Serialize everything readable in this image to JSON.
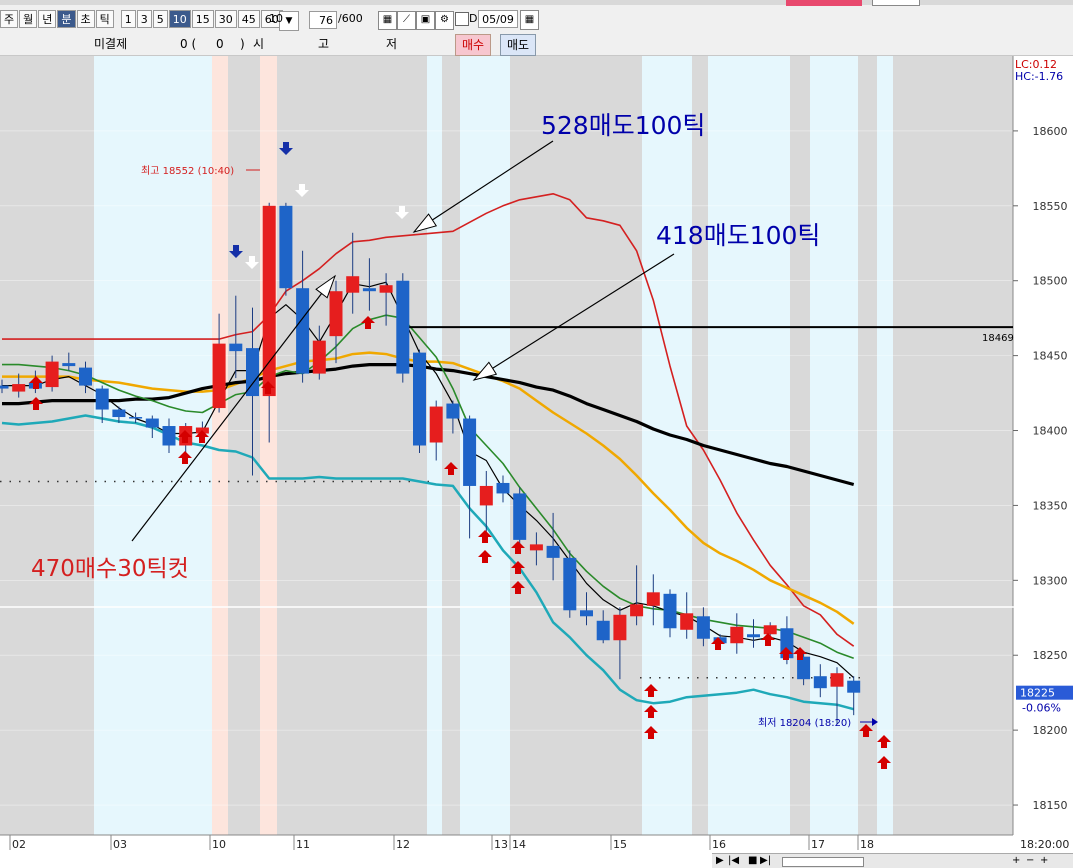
{
  "toolbar": {
    "buttons": [
      "주",
      "월",
      "년",
      "분",
      "초",
      "틱",
      "1",
      "3",
      "5",
      "10",
      "15",
      "30",
      "45",
      "60"
    ],
    "selected": [
      "분",
      "10"
    ],
    "period_value": "10",
    "count_value": "76",
    "count_max": "/600",
    "d_label": "D",
    "date_value": "05/09"
  },
  "order_row": {
    "unfilled_label": "미결제",
    "unfilled_value": "0 (",
    "unfilled_paren": "0",
    "unfilled_close": ")",
    "si": "시",
    "go": "고",
    "jeo": "저",
    "buy_button": "매수",
    "sell_button": "매도"
  },
  "chart_data": {
    "type": "candlestick",
    "y_axis": {
      "range": [
        18130,
        18650
      ],
      "ticks": [
        "18600",
        "18550",
        "18500",
        "18450",
        "18400",
        "18350",
        "18300",
        "18250",
        "18200",
        "18150"
      ],
      "tick_values": [
        18600,
        18550,
        18500,
        18450,
        18400,
        18350,
        18300,
        18250,
        18200,
        18150
      ]
    },
    "x_axis": {
      "labels": [
        "02",
        "03",
        "10",
        "11",
        "12",
        "13",
        "14",
        "15",
        "16",
        "17",
        "18"
      ],
      "last_time": "18:20:00"
    },
    "top_right": {
      "lc": "LC:0.12",
      "hc": "HC:-1.76"
    },
    "current": {
      "price": "18225",
      "change": "-0.06%",
      "value": 18225
    },
    "level_line": {
      "label": "18469",
      "value": 18469
    },
    "dotted_lines": [
      18366,
      18235
    ],
    "candles": [
      {
        "o": 18430,
        "h": 18434,
        "l": 18425,
        "c": 18428,
        "up": false
      },
      {
        "o": 18426,
        "h": 18438,
        "l": 18422,
        "c": 18431,
        "up": true
      },
      {
        "o": 18432,
        "h": 18440,
        "l": 18425,
        "c": 18428,
        "up": false
      },
      {
        "o": 18429,
        "h": 18450,
        "l": 18426,
        "c": 18446,
        "up": true
      },
      {
        "o": 18445,
        "h": 18452,
        "l": 18440,
        "c": 18443,
        "up": false
      },
      {
        "o": 18442,
        "h": 18446,
        "l": 18425,
        "c": 18430,
        "up": false
      },
      {
        "o": 18428,
        "h": 18430,
        "l": 18405,
        "c": 18414,
        "up": false
      },
      {
        "o": 18414,
        "h": 18416,
        "l": 18405,
        "c": 18409,
        "up": false
      },
      {
        "o": 18409,
        "h": 18412,
        "l": 18405,
        "c": 18408,
        "up": false
      },
      {
        "o": 18408,
        "h": 18410,
        "l": 18395,
        "c": 18402,
        "up": false
      },
      {
        "o": 18403,
        "h": 18408,
        "l": 18385,
        "c": 18390,
        "up": false
      },
      {
        "o": 18390,
        "h": 18405,
        "l": 18383,
        "c": 18403,
        "up": true
      },
      {
        "o": 18398,
        "h": 18406,
        "l": 18394,
        "c": 18402,
        "up": true
      },
      {
        "o": 18415,
        "h": 18478,
        "l": 18412,
        "c": 18458,
        "up": true
      },
      {
        "o": 18458,
        "h": 18490,
        "l": 18435,
        "c": 18453,
        "up": false
      },
      {
        "o": 18455,
        "h": 18482,
        "l": 18370,
        "c": 18423,
        "up": false
      },
      {
        "o": 18423,
        "h": 18552,
        "l": 18392,
        "c": 18550,
        "up": true
      },
      {
        "o": 18550,
        "h": 18552,
        "l": 18490,
        "c": 18495,
        "up": false
      },
      {
        "o": 18495,
        "h": 18520,
        "l": 18432,
        "c": 18438,
        "up": false
      },
      {
        "o": 18438,
        "h": 18470,
        "l": 18434,
        "c": 18460,
        "up": true
      },
      {
        "o": 18463,
        "h": 18500,
        "l": 18445,
        "c": 18493,
        "up": true
      },
      {
        "o": 18492,
        "h": 18532,
        "l": 18478,
        "c": 18503,
        "up": true
      },
      {
        "o": 18493,
        "h": 18515,
        "l": 18480,
        "c": 18495,
        "up": false
      },
      {
        "o": 18492,
        "h": 18505,
        "l": 18470,
        "c": 18497,
        "up": true
      },
      {
        "o": 18500,
        "h": 18505,
        "l": 18432,
        "c": 18438,
        "up": false
      },
      {
        "o": 18452,
        "h": 18454,
        "l": 18385,
        "c": 18390,
        "up": false
      },
      {
        "o": 18392,
        "h": 18420,
        "l": 18380,
        "c": 18416,
        "up": true
      },
      {
        "o": 18418,
        "h": 18420,
        "l": 18398,
        "c": 18408,
        "up": false
      },
      {
        "o": 18408,
        "h": 18410,
        "l": 18328,
        "c": 18363,
        "up": false
      },
      {
        "o": 18350,
        "h": 18373,
        "l": 18326,
        "c": 18363,
        "up": true
      },
      {
        "o": 18365,
        "h": 18370,
        "l": 18352,
        "c": 18358,
        "up": false
      },
      {
        "o": 18358,
        "h": 18362,
        "l": 18322,
        "c": 18327,
        "up": false
      },
      {
        "o": 18320,
        "h": 18332,
        "l": 18310,
        "c": 18324,
        "up": true
      },
      {
        "o": 18323,
        "h": 18345,
        "l": 18300,
        "c": 18315,
        "up": false
      },
      {
        "o": 18315,
        "h": 18320,
        "l": 18275,
        "c": 18280,
        "up": false
      },
      {
        "o": 18280,
        "h": 18292,
        "l": 18270,
        "c": 18276,
        "up": false
      },
      {
        "o": 18273,
        "h": 18280,
        "l": 18258,
        "c": 18260,
        "up": false
      },
      {
        "o": 18260,
        "h": 18282,
        "l": 18234,
        "c": 18277,
        "up": true
      },
      {
        "o": 18276,
        "h": 18310,
        "l": 18270,
        "c": 18284,
        "up": true
      },
      {
        "o": 18283,
        "h": 18304,
        "l": 18270,
        "c": 18292,
        "up": true
      },
      {
        "o": 18291,
        "h": 18294,
        "l": 18262,
        "c": 18268,
        "up": false
      },
      {
        "o": 18267,
        "h": 18292,
        "l": 18261,
        "c": 18278,
        "up": true
      },
      {
        "o": 18276,
        "h": 18282,
        "l": 18256,
        "c": 18261,
        "up": false
      },
      {
        "o": 18262,
        "h": 18264,
        "l": 18254,
        "c": 18258,
        "up": false
      },
      {
        "o": 18258,
        "h": 18278,
        "l": 18251,
        "c": 18269,
        "up": true
      },
      {
        "o": 18262,
        "h": 18274,
        "l": 18255,
        "c": 18264,
        "up": false
      },
      {
        "o": 18264,
        "h": 18272,
        "l": 18259,
        "c": 18270,
        "up": true
      },
      {
        "o": 18268,
        "h": 18276,
        "l": 18244,
        "c": 18248,
        "up": false
      },
      {
        "o": 18249,
        "h": 18252,
        "l": 18230,
        "c": 18234,
        "up": false
      },
      {
        "o": 18236,
        "h": 18244,
        "l": 18222,
        "c": 18228,
        "up": false
      },
      {
        "o": 18229,
        "h": 18242,
        "l": 18204,
        "c": 18238,
        "up": true
      },
      {
        "o": 18233,
        "h": 18236,
        "l": 18210,
        "c": 18225,
        "up": false
      }
    ],
    "lines": [
      {
        "name": "red-band",
        "color": "#d42020",
        "values": [
          18461,
          18461,
          18461,
          18461,
          18461,
          18461,
          18461,
          18461,
          18461,
          18461,
          18461,
          18461,
          18461,
          18461,
          18464,
          18466,
          18477,
          18493,
          18500,
          18508,
          18518,
          18526,
          18527,
          18529,
          18530,
          18531,
          18532,
          18533,
          18539,
          18545,
          18550,
          18554,
          18556,
          18558,
          18554,
          18542,
          18540,
          18537,
          18520,
          18487,
          18443,
          18403,
          18387,
          18367,
          18345,
          18327,
          18310,
          18297,
          18283,
          18277,
          18264,
          18256
        ]
      },
      {
        "name": "orange-ma",
        "color": "#f0a800",
        "values": [
          18436,
          18436,
          18436,
          18436,
          18436,
          18434,
          18433,
          18432,
          18430,
          18428,
          18427,
          18426,
          18426,
          18427,
          18431,
          18435,
          18440,
          18443,
          18446,
          18447,
          18448,
          18451,
          18452,
          18451,
          18448,
          18446,
          18446,
          18445,
          18441,
          18437,
          18433,
          18428,
          18420,
          18412,
          18405,
          18398,
          18390,
          18381,
          18370,
          18358,
          18347,
          18335,
          18325,
          18318,
          18313,
          18307,
          18300,
          18295,
          18290,
          18285,
          18279,
          18271
        ]
      },
      {
        "name": "black-long-ma",
        "color": "#000000",
        "values": [
          18418,
          18418,
          18419,
          18420,
          18420,
          18420,
          18420,
          18420,
          18421,
          18421,
          18422,
          18425,
          18428,
          18430,
          18432,
          18433,
          18436,
          18438,
          18439,
          18440,
          18441,
          18443,
          18444,
          18444,
          18444,
          18443,
          18441,
          18440,
          18438,
          18436,
          18434,
          18432,
          18429,
          18427,
          18423,
          18418,
          18414,
          18410,
          18406,
          18401,
          18397,
          18394,
          18390,
          18387,
          18384,
          18381,
          18378,
          18376,
          18373,
          18370,
          18367,
          18364
        ]
      },
      {
        "name": "green-ma",
        "color": "#2a8a2a",
        "values": [
          18444,
          18444,
          18443,
          18442,
          18440,
          18437,
          18432,
          18427,
          18423,
          18420,
          18416,
          18413,
          18412,
          18418,
          18424,
          18426,
          18436,
          18440,
          18438,
          18446,
          18456,
          18468,
          18474,
          18477,
          18475,
          18462,
          18449,
          18428,
          18402,
          18390,
          18378,
          18362,
          18348,
          18334,
          18318,
          18306,
          18296,
          18288,
          18283,
          18281,
          18280,
          18277,
          18274,
          18272,
          18270,
          18269,
          18268,
          18266,
          18262,
          18258,
          18252,
          18248
        ]
      },
      {
        "name": "black-thin-ma",
        "color": "#000000",
        "values": [
          18430,
          18430,
          18430,
          18434,
          18436,
          18430,
          18424,
          18415,
          18408,
          18404,
          18398,
          18398,
          18399,
          18420,
          18440,
          18440,
          18475,
          18484,
          18474,
          18459,
          18478,
          18498,
          18496,
          18499,
          18476,
          18452,
          18438,
          18418,
          18386,
          18380,
          18361,
          18350,
          18340,
          18328,
          18313,
          18298,
          18287,
          18280,
          18285,
          18283,
          18279,
          18276,
          18270,
          18263,
          18262,
          18260,
          18262,
          18259,
          18252,
          18249,
          18245,
          18235
        ]
      },
      {
        "name": "teal-band",
        "color": "#1fa9b8",
        "values": [
          18405,
          18404,
          18405,
          18406,
          18408,
          18410,
          18408,
          18406,
          18405,
          18402,
          18397,
          18392,
          18390,
          18387,
          18386,
          18382,
          18368,
          18368,
          18368,
          18369,
          18368,
          18368,
          18368,
          18368,
          18368,
          18366,
          18364,
          18363,
          18348,
          18336,
          18320,
          18308,
          18292,
          18272,
          18262,
          18250,
          18240,
          18227,
          18220,
          18218,
          18219,
          18222,
          18223,
          18224,
          18225,
          18227,
          18224,
          18222,
          18219,
          18218,
          18217,
          18214
        ]
      }
    ],
    "annotations": [
      {
        "text": "528매도100틱",
        "color": "#0000aa"
      },
      {
        "text": "418매도100틱",
        "color": "#0000aa"
      },
      {
        "text": "470매수30틱컷",
        "color": "#d42020"
      },
      {
        "text": "최고 18552 (10:40)",
        "color": "#d42020"
      },
      {
        "text": "최저 18204 (18:20)",
        "color": "#0000aa"
      }
    ]
  }
}
